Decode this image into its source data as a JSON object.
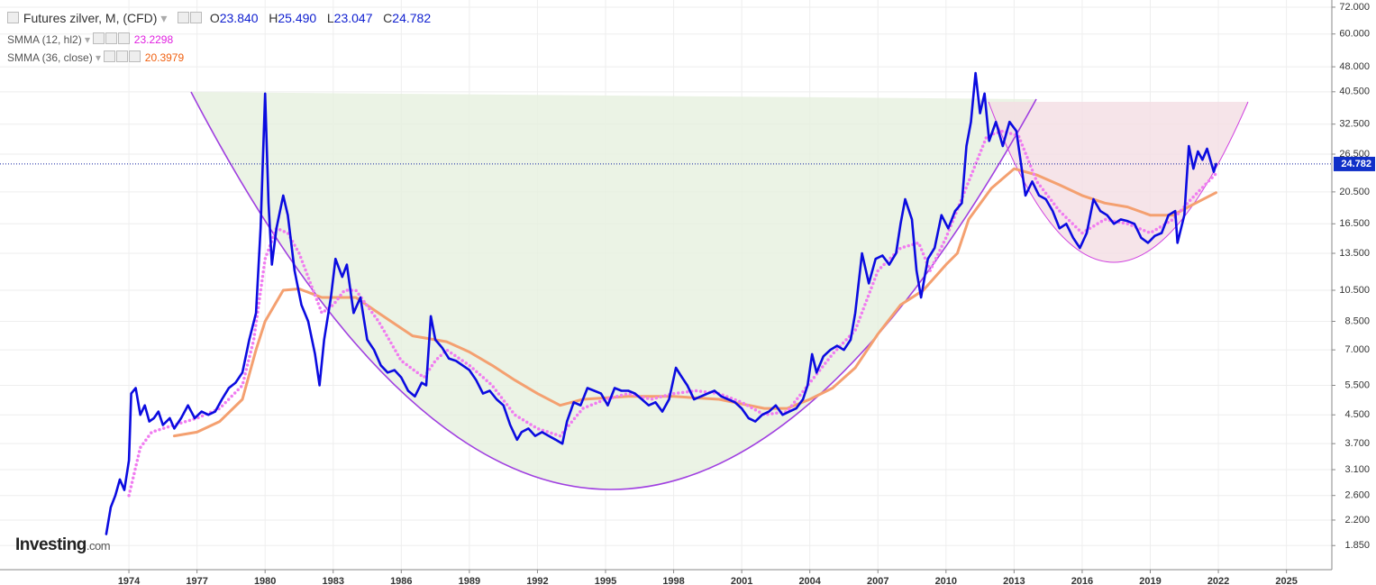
{
  "chart_data": {
    "type": "line",
    "log_scale": true,
    "grid": true,
    "xlim": [
      1968.32,
      2027.0
    ],
    "ylim": [
      1.57,
      75.6
    ],
    "xticks": [
      1974,
      1977,
      1980,
      1983,
      1986,
      1989,
      1992,
      1995,
      1998,
      2001,
      2004,
      2007,
      2010,
      2013,
      2016,
      2019,
      2022,
      2025
    ],
    "yticks": [
      {
        "value": 1.85,
        "label": "1.850"
      },
      {
        "value": 2.2,
        "label": "2.200"
      },
      {
        "value": 2.6,
        "label": "2.600"
      },
      {
        "value": 3.1,
        "label": "3.100"
      },
      {
        "value": 3.7,
        "label": "3.700"
      },
      {
        "value": 4.5,
        "label": "4.500"
      },
      {
        "value": 5.5,
        "label": "5.500"
      },
      {
        "value": 7,
        "label": "7.000"
      },
      {
        "value": 8.5,
        "label": "8.500"
      },
      {
        "value": 10.5,
        "label": "10.500"
      },
      {
        "value": 13.5,
        "label": "13.500"
      },
      {
        "value": 16.5,
        "label": "16.500"
      },
      {
        "value": 20.5,
        "label": "20.500"
      },
      {
        "value": 26.5,
        "label": "26.500"
      },
      {
        "value": 32.5,
        "label": "32.500"
      },
      {
        "value": 40.5,
        "label": "40.500"
      },
      {
        "value": 48,
        "label": "48.000"
      },
      {
        "value": 60,
        "label": "60.000"
      },
      {
        "value": 72,
        "label": "72.000"
      }
    ],
    "header": {
      "open_key": "O",
      "open": "23.840",
      "high_key": "H",
      "high": "25.490",
      "low_key": "L",
      "low": "23.047",
      "close_key": "C",
      "close": "24.782"
    },
    "last_price": {
      "value": 24.782,
      "label": "24.782"
    },
    "logo": {
      "brand": "Investing",
      "suffix": ".com"
    },
    "series": [
      {
        "name": "Futures zilver, M, (CFD)",
        "color": "#0b0be0",
        "style": "solid",
        "x": [
          1973.0,
          1973.2,
          1973.4,
          1973.6,
          1973.8,
          1974.0,
          1974.1,
          1974.3,
          1974.5,
          1974.7,
          1974.9,
          1975.1,
          1975.3,
          1975.5,
          1975.8,
          1976.0,
          1976.3,
          1976.6,
          1976.9,
          1977.2,
          1977.5,
          1977.8,
          1978.1,
          1978.4,
          1978.7,
          1979.0,
          1979.3,
          1979.6,
          1979.8,
          1980.0,
          1980.15,
          1980.3,
          1980.5,
          1980.8,
          1981.0,
          1981.3,
          1981.6,
          1981.9,
          1982.2,
          1982.4,
          1982.6,
          1982.9,
          1983.1,
          1983.4,
          1983.6,
          1983.9,
          1984.2,
          1984.5,
          1984.8,
          1985.1,
          1985.4,
          1985.7,
          1986.0,
          1986.3,
          1986.6,
          1986.9,
          1987.1,
          1987.3,
          1987.5,
          1987.8,
          1988.1,
          1988.4,
          1988.7,
          1989.0,
          1989.3,
          1989.6,
          1989.9,
          1990.2,
          1990.5,
          1990.8,
          1991.1,
          1991.3,
          1991.6,
          1991.9,
          1992.2,
          1992.5,
          1992.8,
          1993.1,
          1993.3,
          1993.6,
          1993.9,
          1994.2,
          1994.5,
          1994.8,
          1995.1,
          1995.4,
          1995.7,
          1996.0,
          1996.3,
          1996.6,
          1996.9,
          1997.2,
          1997.5,
          1997.8,
          1998.1,
          1998.3,
          1998.6,
          1998.9,
          1999.2,
          1999.5,
          1999.8,
          2000.1,
          2000.4,
          2000.7,
          2001.0,
          2001.3,
          2001.6,
          2001.9,
          2002.2,
          2002.5,
          2002.8,
          2003.1,
          2003.4,
          2003.7,
          2003.9,
          2004.1,
          2004.3,
          2004.6,
          2004.9,
          2005.2,
          2005.5,
          2005.8,
          2006.0,
          2006.3,
          2006.6,
          2006.9,
          2007.2,
          2007.5,
          2007.8,
          2008.0,
          2008.2,
          2008.5,
          2008.7,
          2008.9,
          2009.2,
          2009.5,
          2009.8,
          2010.1,
          2010.4,
          2010.7,
          2010.9,
          2011.1,
          2011.3,
          2011.5,
          2011.7,
          2011.9,
          2012.2,
          2012.5,
          2012.8,
          2013.1,
          2013.3,
          2013.5,
          2013.8,
          2014.1,
          2014.4,
          2014.7,
          2015.0,
          2015.3,
          2015.6,
          2015.9,
          2016.2,
          2016.5,
          2016.8,
          2017.1,
          2017.4,
          2017.7,
          2018.0,
          2018.3,
          2018.6,
          2018.9,
          2019.2,
          2019.5,
          2019.8,
          2020.1,
          2020.2,
          2020.5,
          2020.7,
          2020.9,
          2021.1,
          2021.3,
          2021.5,
          2021.8,
          2021.9
        ],
        "values": [
          2.0,
          2.4,
          2.6,
          2.9,
          2.7,
          3.3,
          5.2,
          5.4,
          4.5,
          4.8,
          4.3,
          4.4,
          4.6,
          4.2,
          4.4,
          4.1,
          4.4,
          4.8,
          4.4,
          4.6,
          4.5,
          4.6,
          5.0,
          5.4,
          5.6,
          6.0,
          7.5,
          9.0,
          16.0,
          40.0,
          19.0,
          12.5,
          16.0,
          20.0,
          17.5,
          12.0,
          9.5,
          8.5,
          6.8,
          5.5,
          7.5,
          10.0,
          13.0,
          11.5,
          12.5,
          9.0,
          10.0,
          7.5,
          7.0,
          6.3,
          6.0,
          6.1,
          5.8,
          5.3,
          5.1,
          5.6,
          5.5,
          8.8,
          7.5,
          7.1,
          6.6,
          6.5,
          6.3,
          6.1,
          5.7,
          5.2,
          5.3,
          5.0,
          4.8,
          4.2,
          3.8,
          4.0,
          4.1,
          3.9,
          4.0,
          3.9,
          3.8,
          3.7,
          4.3,
          4.9,
          4.8,
          5.4,
          5.3,
          5.2,
          4.8,
          5.4,
          5.3,
          5.3,
          5.2,
          5.0,
          4.8,
          4.9,
          4.6,
          5.0,
          6.2,
          5.9,
          5.5,
          5.0,
          5.1,
          5.2,
          5.3,
          5.1,
          5.0,
          4.9,
          4.7,
          4.4,
          4.3,
          4.5,
          4.6,
          4.8,
          4.5,
          4.6,
          4.7,
          5.0,
          5.5,
          6.8,
          6.0,
          6.7,
          7.0,
          7.2,
          7.0,
          7.5,
          9.0,
          13.5,
          11.0,
          13.0,
          13.3,
          12.5,
          13.5,
          16.5,
          19.5,
          17.0,
          12.0,
          10.0,
          13.0,
          14.0,
          17.5,
          16.0,
          18.0,
          19.0,
          28.0,
          33.0,
          46.0,
          35.0,
          40.0,
          29.0,
          33.0,
          28.0,
          33.0,
          31.0,
          25.0,
          20.0,
          22.0,
          20.0,
          19.5,
          18.0,
          16.0,
          16.5,
          15.0,
          14.0,
          15.5,
          19.5,
          18.0,
          17.5,
          16.5,
          17.0,
          16.8,
          16.5,
          15.0,
          14.5,
          15.2,
          15.5,
          17.5,
          18.0,
          14.5,
          17.5,
          28.0,
          24.0,
          27.0,
          25.5,
          27.5,
          23.5,
          24.782
        ]
      },
      {
        "name": "SMMA (12, hl2)",
        "color": "#f07cf0",
        "style": "dots",
        "last_label": "23.2298",
        "label_color": "#e020e0",
        "x": [
          1974.0,
          1974.5,
          1975.0,
          1976,
          1977,
          1978,
          1979,
          1979.5,
          1980.0,
          1980.5,
          1981,
          1981.5,
          1982,
          1982.5,
          1983,
          1983.5,
          1984,
          1985,
          1986,
          1987,
          1987.5,
          1988,
          1989,
          1990,
          1991,
          1992,
          1993,
          1994,
          1995,
          1996,
          1997,
          1998,
          1999,
          2000,
          2001,
          2002,
          2003,
          2004,
          2005,
          2006,
          2007,
          2008,
          2008.8,
          2009.3,
          2010,
          2011,
          2011.8,
          2012.5,
          2013.2,
          2014,
          2015,
          2016,
          2017,
          2018,
          2019,
          2020,
          2020.8,
          2021.9
        ],
        "values": [
          2.6,
          3.6,
          4.0,
          4.2,
          4.4,
          4.7,
          5.5,
          7.5,
          13.0,
          16.0,
          15.5,
          13.5,
          11.0,
          9.0,
          9.5,
          10.5,
          10.5,
          8.5,
          6.5,
          5.8,
          6.5,
          7.0,
          6.3,
          5.5,
          4.5,
          4.1,
          3.9,
          4.7,
          5.0,
          5.2,
          5.0,
          5.2,
          5.3,
          5.2,
          4.9,
          4.5,
          4.6,
          5.6,
          6.8,
          8.0,
          12.0,
          14.0,
          14.5,
          12.0,
          15.0,
          22.0,
          30.0,
          31.0,
          30.0,
          22.0,
          18.0,
          15.5,
          17.0,
          16.5,
          15.5,
          17.0,
          19.5,
          23.23
        ]
      },
      {
        "name": "SMMA (36, close)",
        "color": "#f4a070",
        "style": "solid",
        "last_label": "20.3979",
        "label_color": "#f06010",
        "x": [
          1976.0,
          1977,
          1978,
          1979,
          1979.6,
          1980,
          1980.8,
          1981.5,
          1982.5,
          1984,
          1985,
          1986.5,
          1988,
          1989,
          1990,
          1991,
          1992,
          1993,
          1994,
          1996,
          1998,
          2000,
          2002,
          2003,
          2004,
          2005,
          2006,
          2007,
          2008,
          2009,
          2010,
          2010.5,
          2011,
          2012,
          2013,
          2014,
          2015,
          2016,
          2017,
          2018,
          2019,
          2020,
          2021,
          2021.9
        ],
        "values": [
          3.9,
          4.0,
          4.3,
          5.0,
          7.0,
          8.5,
          10.5,
          10.6,
          10.0,
          10.0,
          9.0,
          7.7,
          7.4,
          6.9,
          6.3,
          5.7,
          5.2,
          4.8,
          5.0,
          5.1,
          5.1,
          5.0,
          4.7,
          4.7,
          5.0,
          5.4,
          6.2,
          7.8,
          9.5,
          10.5,
          12.5,
          13.5,
          17.0,
          21.0,
          24.0,
          23.0,
          21.5,
          20.0,
          19.0,
          18.5,
          17.5,
          17.5,
          19.0,
          20.398
        ]
      }
    ]
  }
}
